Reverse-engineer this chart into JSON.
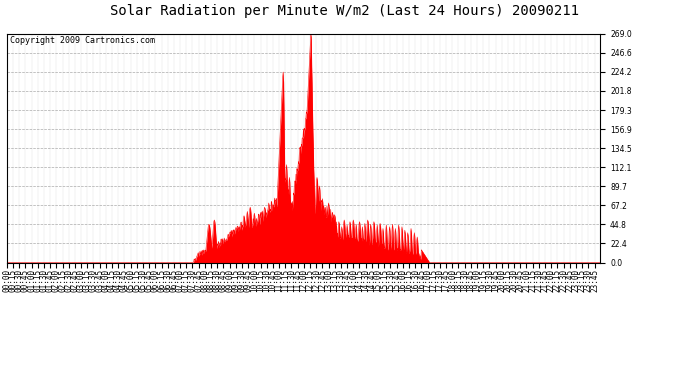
{
  "title": "Solar Radiation per Minute W/m2 (Last 24 Hours) 20090211",
  "copyright": "Copyright 2009 Cartronics.com",
  "bg_color": "#ffffff",
  "plot_bg_color": "#ffffff",
  "line_color": "#ff0000",
  "fill_color": "#ff0000",
  "grid_color": "#888888",
  "y_max": 269.0,
  "y_min": 0.0,
  "y_ticks": [
    0.0,
    22.4,
    44.8,
    67.2,
    89.7,
    112.1,
    134.5,
    156.9,
    179.3,
    201.8,
    224.2,
    246.6,
    269.0
  ],
  "num_minutes": 1440,
  "title_fontsize": 10,
  "copyright_fontsize": 6,
  "tick_fontsize": 5.5
}
